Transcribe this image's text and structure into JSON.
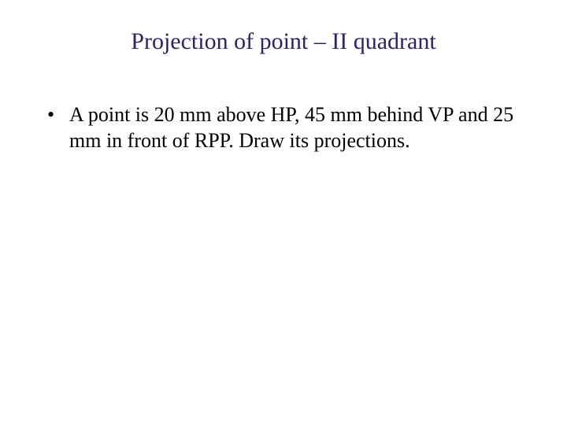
{
  "slide": {
    "title": "Projection of point – II quadrant",
    "title_color": "#2c2270",
    "title_fontsize": 30,
    "background_color": "#ffffff",
    "bullets": [
      "A point is 20 mm above HP, 45 mm behind VP and 25 mm in front of RPP. Draw its projections."
    ],
    "bullet_color": "#000000",
    "bullet_fontsize": 26
  }
}
